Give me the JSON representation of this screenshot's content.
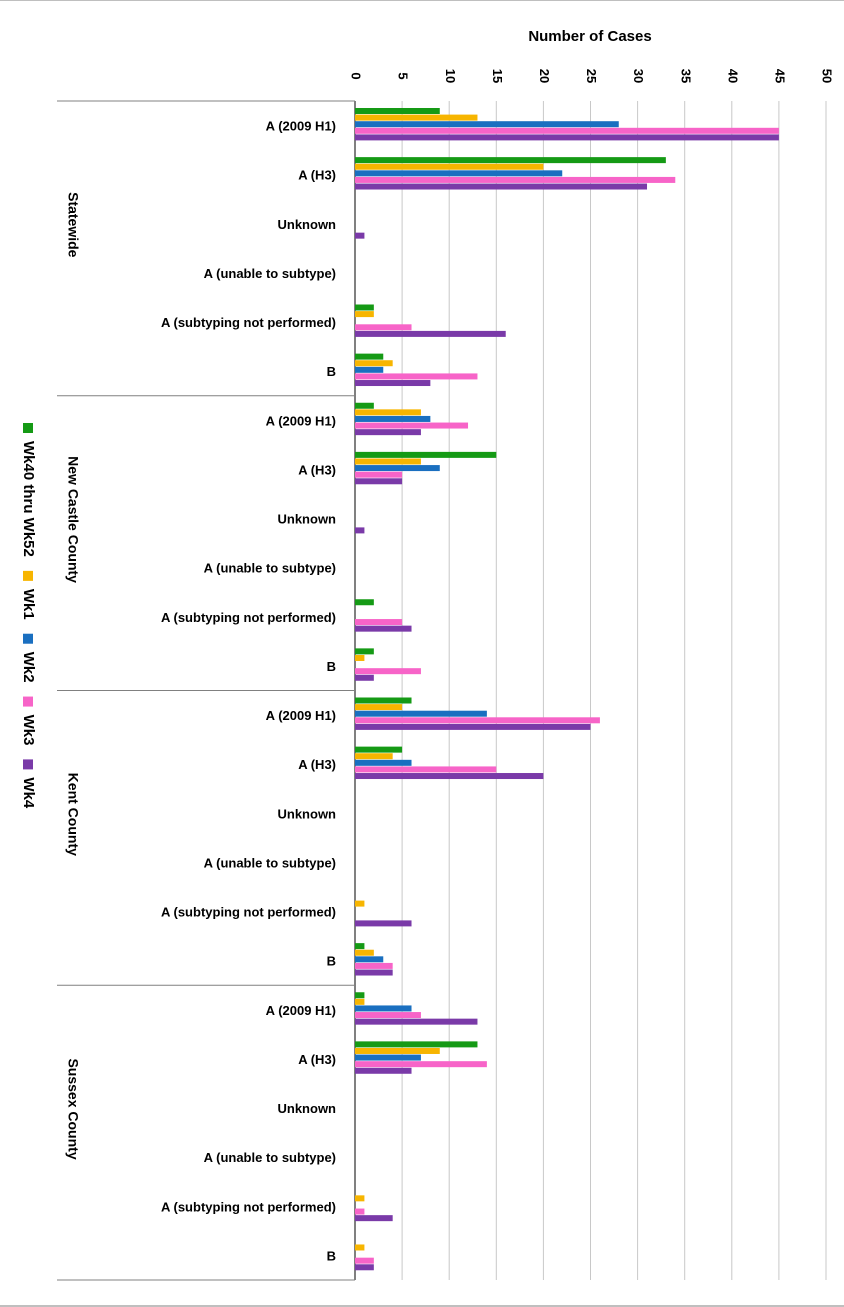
{
  "chart_data": {
    "type": "bar",
    "orientation": "horizontal",
    "xlabel": "Number of Cases",
    "xlim": [
      0,
      50
    ],
    "xticks": [
      0,
      5,
      10,
      15,
      20,
      25,
      30,
      35,
      40,
      45,
      50
    ],
    "grid": true,
    "legend_position": "left",
    "subcategories": [
      "A (2009 H1)",
      "A (H3)",
      "Unknown",
      "A (unable to subtype)",
      "A (subtyping not performed)",
      "B"
    ],
    "groups": [
      "Statewide",
      "New Castle County",
      "Kent County",
      "Sussex County"
    ],
    "series": [
      {
        "name": "Wk40 thru Wk52",
        "color": "#159a15",
        "values": [
          [
            9,
            33,
            0,
            0,
            2,
            3
          ],
          [
            2,
            15,
            0,
            0,
            2,
            2
          ],
          [
            6,
            5,
            0,
            0,
            0,
            1
          ],
          [
            1,
            13,
            0,
            0,
            0,
            0
          ]
        ]
      },
      {
        "name": "Wk1",
        "color": "#f7b500",
        "values": [
          [
            13,
            20,
            0,
            0,
            2,
            4
          ],
          [
            7,
            7,
            0,
            0,
            0,
            1
          ],
          [
            5,
            4,
            0,
            0,
            1,
            2
          ],
          [
            1,
            9,
            0,
            0,
            1,
            1
          ]
        ]
      },
      {
        "name": "Wk2",
        "color": "#1a6fc0",
        "values": [
          [
            28,
            22,
            0,
            0,
            0,
            3
          ],
          [
            8,
            9,
            0,
            0,
            0,
            0
          ],
          [
            14,
            6,
            0,
            0,
            0,
            3
          ],
          [
            6,
            7,
            0,
            0,
            0,
            0
          ]
        ]
      },
      {
        "name": "Wk3",
        "color": "#f764c8",
        "values": [
          [
            45,
            34,
            0,
            0,
            6,
            13
          ],
          [
            12,
            5,
            0,
            0,
            5,
            7
          ],
          [
            26,
            15,
            0,
            0,
            0,
            4
          ],
          [
            7,
            14,
            0,
            0,
            1,
            2
          ]
        ]
      },
      {
        "name": "Wk4",
        "color": "#7a3aa8",
        "values": [
          [
            45,
            31,
            1,
            0,
            16,
            8
          ],
          [
            7,
            5,
            1,
            0,
            6,
            2
          ],
          [
            25,
            20,
            0,
            0,
            6,
            4
          ],
          [
            13,
            6,
            0,
            0,
            4,
            2
          ]
        ]
      }
    ]
  }
}
